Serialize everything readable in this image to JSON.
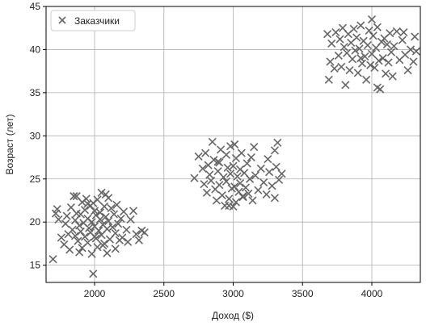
{
  "chart_data": {
    "type": "scatter",
    "title": "",
    "xlabel": "Доход ($)",
    "ylabel": "Возраст (лет)",
    "xlim": [
      1650,
      4350
    ],
    "ylim": [
      13,
      45
    ],
    "xticks": [
      2000,
      2500,
      3000,
      3500,
      4000
    ],
    "yticks": [
      15,
      20,
      25,
      30,
      35,
      40,
      45
    ],
    "grid": true,
    "legend": {
      "placement": "top-left",
      "entries": [
        "Заказчики"
      ]
    },
    "marker": "x",
    "color": "#666666",
    "series": [
      {
        "name": "Заказчики",
        "points": [
          [
            1700,
            15.7
          ],
          [
            1720,
            21.0
          ],
          [
            1730,
            21.5
          ],
          [
            1740,
            20.3
          ],
          [
            1760,
            18.2
          ],
          [
            1780,
            17.4
          ],
          [
            1790,
            19.8
          ],
          [
            1800,
            20.7
          ],
          [
            1810,
            18.6
          ],
          [
            1820,
            16.8
          ],
          [
            1830,
            21.7
          ],
          [
            1840,
            19.1
          ],
          [
            1850,
            23.0
          ],
          [
            1860,
            20.2
          ],
          [
            1860,
            18.4
          ],
          [
            1870,
            23.0
          ],
          [
            1870,
            21.0
          ],
          [
            1880,
            17.8
          ],
          [
            1890,
            19.6
          ],
          [
            1900,
            20.9
          ],
          [
            1900,
            18.9
          ],
          [
            1910,
            22.3
          ],
          [
            1910,
            17.0
          ],
          [
            1920,
            19.9
          ],
          [
            1930,
            21.4
          ],
          [
            1930,
            18.3
          ],
          [
            1940,
            22.7
          ],
          [
            1950,
            20.4
          ],
          [
            1950,
            17.6
          ],
          [
            1960,
            19.3
          ],
          [
            1970,
            21.9
          ],
          [
            1970,
            18.8
          ],
          [
            1980,
            20.0
          ],
          [
            1980,
            16.3
          ],
          [
            1990,
            14.0
          ],
          [
            1990,
            22.2
          ],
          [
            2000,
            19.5
          ],
          [
            2000,
            21.3
          ],
          [
            2010,
            18.1
          ],
          [
            2010,
            20.8
          ],
          [
            2020,
            17.1
          ],
          [
            2020,
            22.6
          ],
          [
            2030,
            19.0
          ],
          [
            2040,
            21.1
          ],
          [
            2040,
            20.3
          ],
          [
            2050,
            18.5
          ],
          [
            2050,
            23.4
          ],
          [
            2060,
            19.7
          ],
          [
            2070,
            21.8
          ],
          [
            2070,
            17.5
          ],
          [
            2080,
            20.6
          ],
          [
            2080,
            23.2
          ],
          [
            2090,
            19.2
          ],
          [
            2090,
            16.4
          ],
          [
            2100,
            22.8
          ],
          [
            2100,
            20.1
          ],
          [
            2110,
            18.0
          ],
          [
            2120,
            21.6
          ],
          [
            2130,
            19.4
          ],
          [
            2140,
            20.9
          ],
          [
            2150,
            18.7
          ],
          [
            2160,
            22.0
          ],
          [
            2170,
            19.8
          ],
          [
            2180,
            17.9
          ],
          [
            2190,
            20.4
          ],
          [
            2200,
            18.2
          ],
          [
            2210,
            21.2
          ],
          [
            2230,
            19.1
          ],
          [
            2240,
            17.7
          ],
          [
            2260,
            20.3
          ],
          [
            2280,
            21.3
          ],
          [
            2300,
            18.6
          ],
          [
            2320,
            17.9
          ],
          [
            2340,
            19.0
          ],
          [
            2360,
            18.8
          ],
          [
            2150,
            16.9
          ],
          [
            2060,
            17.3
          ],
          [
            1950,
            22.1
          ],
          [
            1890,
            16.5
          ],
          [
            2000,
            18.3
          ],
          [
            2720,
            25.1
          ],
          [
            2750,
            27.6
          ],
          [
            2780,
            26.2
          ],
          [
            2790,
            24.4
          ],
          [
            2800,
            28.0
          ],
          [
            2810,
            23.4
          ],
          [
            2820,
            26.6
          ],
          [
            2830,
            25.5
          ],
          [
            2840,
            24.8
          ],
          [
            2850,
            29.3
          ],
          [
            2860,
            27.2
          ],
          [
            2870,
            23.8
          ],
          [
            2880,
            22.5
          ],
          [
            2890,
            25.9
          ],
          [
            2900,
            26.9
          ],
          [
            2900,
            24.3
          ],
          [
            2910,
            28.4
          ],
          [
            2920,
            23.1
          ],
          [
            2930,
            25.2
          ],
          [
            2940,
            21.9
          ],
          [
            2950,
            27.8
          ],
          [
            2950,
            24.7
          ],
          [
            2960,
            26.3
          ],
          [
            2970,
            22.7
          ],
          [
            2980,
            25.6
          ],
          [
            2980,
            28.8
          ],
          [
            2990,
            23.9
          ],
          [
            3000,
            21.8
          ],
          [
            3000,
            26.5
          ],
          [
            3010,
            24.1
          ],
          [
            3020,
            27.4
          ],
          [
            3020,
            22.3
          ],
          [
            3030,
            25.3
          ],
          [
            3040,
            23.5
          ],
          [
            3050,
            26.1
          ],
          [
            3050,
            24.5
          ],
          [
            3060,
            28.0
          ],
          [
            3070,
            22.9
          ],
          [
            3080,
            25.7
          ],
          [
            3090,
            24.0
          ],
          [
            3100,
            26.8
          ],
          [
            3110,
            23.3
          ],
          [
            3120,
            25.0
          ],
          [
            3130,
            27.5
          ],
          [
            3140,
            22.5
          ],
          [
            3150,
            28.7
          ],
          [
            3160,
            25.4
          ],
          [
            3180,
            23.7
          ],
          [
            3200,
            26.2
          ],
          [
            3220,
            24.6
          ],
          [
            3240,
            23.2
          ],
          [
            3250,
            27.3
          ],
          [
            3260,
            25.8
          ],
          [
            3280,
            24.2
          ],
          [
            3300,
            28.3
          ],
          [
            3300,
            22.8
          ],
          [
            3310,
            26.4
          ],
          [
            3320,
            29.2
          ],
          [
            3330,
            24.9
          ],
          [
            3350,
            25.6
          ],
          [
            2970,
            21.9
          ],
          [
            3070,
            23.0
          ],
          [
            2890,
            27.0
          ],
          [
            3010,
            29.0
          ],
          [
            3680,
            41.8
          ],
          [
            3690,
            36.5
          ],
          [
            3700,
            38.6
          ],
          [
            3710,
            40.7
          ],
          [
            3730,
            37.8
          ],
          [
            3740,
            42.0
          ],
          [
            3760,
            39.3
          ],
          [
            3770,
            41.2
          ],
          [
            3780,
            38.0
          ],
          [
            3790,
            42.5
          ],
          [
            3800,
            40.3
          ],
          [
            3810,
            35.9
          ],
          [
            3820,
            39.6
          ],
          [
            3830,
            41.8
          ],
          [
            3840,
            37.6
          ],
          [
            3850,
            40.8
          ],
          [
            3860,
            38.9
          ],
          [
            3870,
            42.4
          ],
          [
            3880,
            39.9
          ],
          [
            3890,
            41.4
          ],
          [
            3900,
            37.3
          ],
          [
            3910,
            40.1
          ],
          [
            3920,
            42.8
          ],
          [
            3930,
            38.4
          ],
          [
            3940,
            41.0
          ],
          [
            3950,
            39.2
          ],
          [
            3960,
            36.5
          ],
          [
            3970,
            40.5
          ],
          [
            3980,
            42.2
          ],
          [
            3990,
            38.2
          ],
          [
            4000,
            43.5
          ],
          [
            4000,
            39.5
          ],
          [
            4010,
            41.6
          ],
          [
            4020,
            37.9
          ],
          [
            4030,
            40.2
          ],
          [
            4040,
            42.6
          ],
          [
            4050,
            38.7
          ],
          [
            4060,
            35.4
          ],
          [
            4070,
            40.9
          ],
          [
            4080,
            39.0
          ],
          [
            4090,
            41.3
          ],
          [
            4100,
            37.2
          ],
          [
            4110,
            40.6
          ],
          [
            4120,
            38.5
          ],
          [
            4130,
            41.9
          ],
          [
            4140,
            39.7
          ],
          [
            4150,
            36.9
          ],
          [
            4160,
            40.4
          ],
          [
            4180,
            42.1
          ],
          [
            4200,
            38.8
          ],
          [
            4220,
            41.1
          ],
          [
            4240,
            39.4
          ],
          [
            4260,
            37.6
          ],
          [
            4280,
            40.0
          ],
          [
            4300,
            38.6
          ],
          [
            4310,
            41.5
          ],
          [
            4320,
            39.8
          ],
          [
            4230,
            42.0
          ],
          [
            4040,
            35.6
          ],
          [
            3920,
            39.0
          ]
        ]
      }
    ]
  }
}
